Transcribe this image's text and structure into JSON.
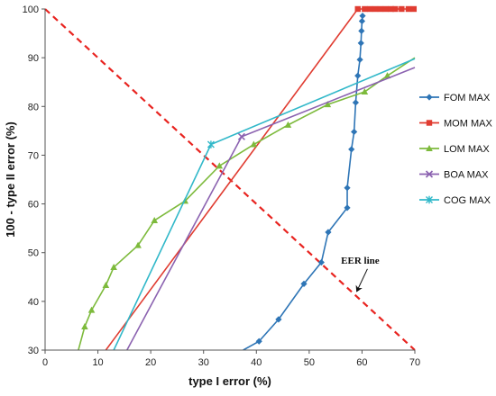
{
  "chart_data": {
    "type": "line",
    "xlabel": "type I error (%)",
    "ylabel": "100 - type II error (%)",
    "xlim": [
      0,
      70
    ],
    "ylim": [
      30,
      100
    ],
    "xticks": [
      0,
      10,
      20,
      30,
      40,
      50,
      60,
      70
    ],
    "yticks": [
      30,
      40,
      50,
      60,
      70,
      80,
      90,
      100
    ],
    "grid": false,
    "legend_position": "right",
    "series": [
      {
        "name": "FOM MAX",
        "color": "#2E75B6",
        "marker": "diamond",
        "points": [
          [
            37.5,
            30
          ],
          [
            40.5,
            31.8
          ],
          [
            44.2,
            36.3
          ],
          [
            49,
            43.6
          ],
          [
            52.3,
            48
          ],
          [
            53.6,
            54.2
          ],
          [
            57.2,
            59.2
          ],
          [
            57.2,
            63.3
          ],
          [
            58,
            71.2
          ],
          [
            58.5,
            74.8
          ],
          [
            58.8,
            80.8
          ],
          [
            59.2,
            86.3
          ],
          [
            59.6,
            89.6
          ],
          [
            59.8,
            93
          ],
          [
            59.9,
            95.5
          ],
          [
            60,
            97.5
          ],
          [
            60.1,
            98.6
          ]
        ]
      },
      {
        "name": "MOM MAX",
        "color": "#E03C31",
        "marker": "square",
        "points": [
          [
            11.5,
            30
          ],
          [
            59.2,
            100
          ],
          [
            60.5,
            100
          ],
          [
            61.5,
            100
          ],
          [
            62.5,
            100
          ],
          [
            63.5,
            100
          ],
          [
            64.5,
            100
          ],
          [
            65.5,
            100
          ],
          [
            66.3,
            100
          ],
          [
            67.5,
            100
          ],
          [
            68.8,
            100
          ],
          [
            69.8,
            100
          ]
        ]
      },
      {
        "name": "LOM MAX",
        "color": "#7DBA3C",
        "marker": "triangle",
        "points": [
          [
            6.3,
            30
          ],
          [
            7.5,
            34.8
          ],
          [
            8.8,
            38.2
          ],
          [
            11.5,
            43.3
          ],
          [
            13,
            47
          ],
          [
            17.6,
            51.5
          ],
          [
            20.7,
            56.6
          ],
          [
            26.5,
            60.6
          ],
          [
            33,
            67.8
          ],
          [
            39.5,
            72.2
          ],
          [
            46,
            76.2
          ],
          [
            53.5,
            80.4
          ],
          [
            60.5,
            83
          ],
          [
            64.8,
            86.3
          ],
          [
            70,
            90
          ]
        ]
      },
      {
        "name": "BOA MAX",
        "color": "#8B62B0",
        "marker": "x",
        "points": [
          [
            15.5,
            30
          ],
          [
            37.2,
            73.8
          ],
          [
            70,
            88
          ]
        ]
      },
      {
        "name": "COG MAX",
        "color": "#31B8C9",
        "marker": "asterisk",
        "points": [
          [
            13,
            30
          ],
          [
            31.4,
            72.2
          ],
          [
            70,
            89.8
          ]
        ]
      }
    ],
    "reference_line": {
      "label": "EER line",
      "color": "#E8231F",
      "style": "dashed",
      "points": [
        [
          0,
          100
        ],
        [
          70,
          30
        ]
      ],
      "annotation_point": [
        58.5,
        41.5
      ],
      "annotation_text_point": [
        60,
        48.5
      ]
    }
  }
}
